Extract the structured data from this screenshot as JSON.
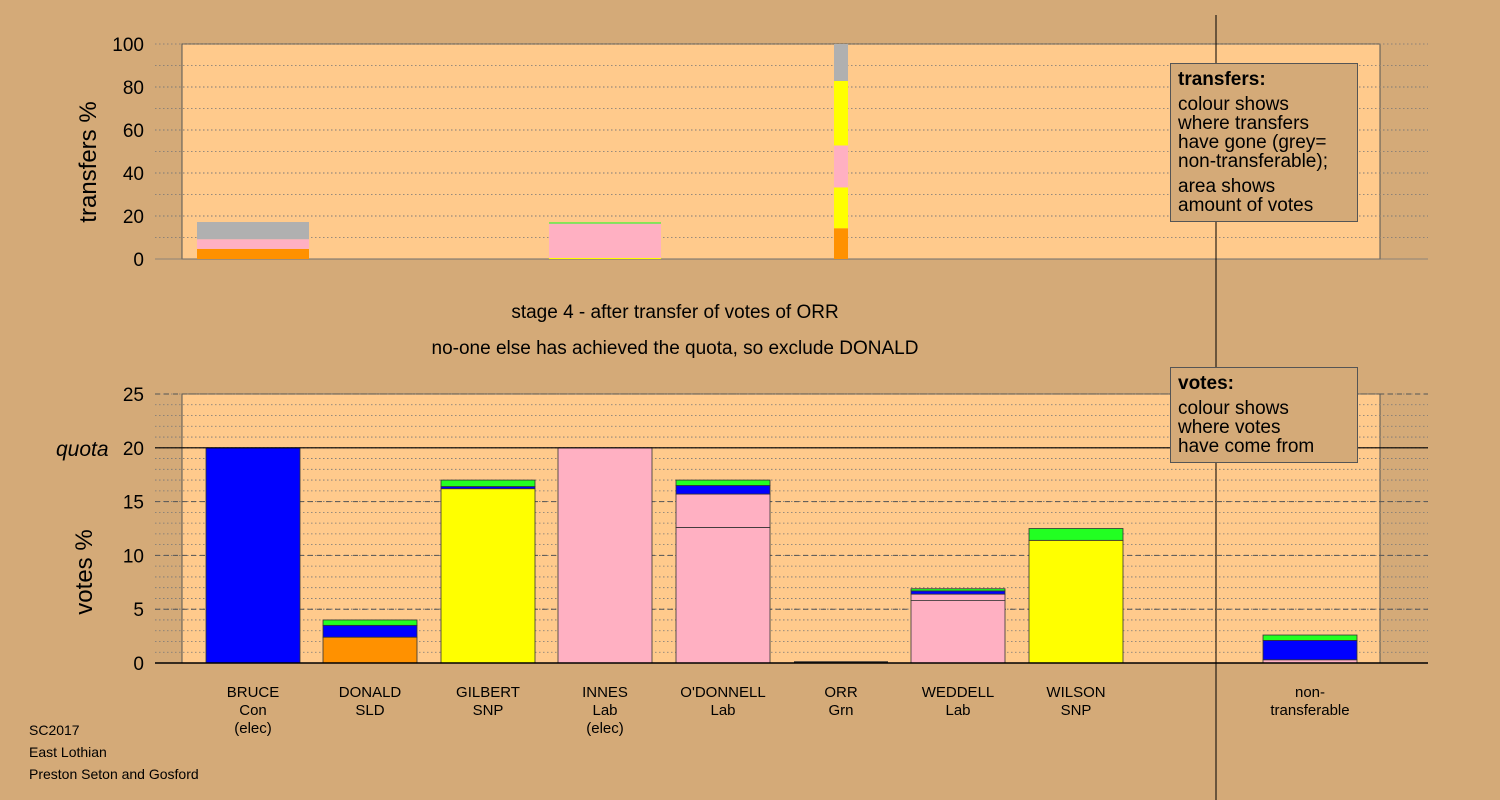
{
  "chart_data": [
    {
      "type": "bar",
      "stacked": true,
      "ylabel": "transfers %",
      "ylim": [
        0,
        100
      ],
      "yticks": [
        0,
        20,
        40,
        60,
        80,
        100
      ],
      "grid": "dotted",
      "categories": [
        "BRUCE",
        "DONALD",
        "GILBERT",
        "INNES",
        "O'DONNELL",
        "ORR",
        "WEDDELL",
        "WILSON",
        "non-transferable"
      ],
      "stacks": [
        {
          "category": "BRUCE",
          "segments": [
            {
              "party": "SLD",
              "value": 4.7
            },
            {
              "party": "Lab",
              "value": 4.5
            },
            {
              "party": "non-transferable",
              "value": 8.0
            }
          ]
        },
        {
          "category": "INNES",
          "segments": [
            {
              "party": "SNP",
              "value": 0.5
            },
            {
              "party": "Lab",
              "value": 16.0
            },
            {
              "party": "Grn",
              "value": 0.5
            }
          ]
        },
        {
          "category": "ORR",
          "segments": [
            {
              "party": "SLD",
              "value": 14.3
            },
            {
              "party": "SNP",
              "value": 19.0
            },
            {
              "party": "Lab",
              "value": 19.5
            },
            {
              "party": "SNP",
              "value": 30.0
            },
            {
              "party": "non-transferable",
              "value": 17.2
            }
          ]
        }
      ]
    },
    {
      "type": "bar",
      "stacked": true,
      "ylabel": "votes %",
      "ylim": [
        0,
        25
      ],
      "yticks": [
        0,
        5,
        10,
        15,
        20,
        25
      ],
      "quota": 20,
      "quota_label": "quota",
      "grid": "dotted",
      "categories": [
        {
          "name": "BRUCE",
          "party": "Con",
          "note": "(elec)"
        },
        {
          "name": "DONALD",
          "party": "SLD",
          "note": ""
        },
        {
          "name": "GILBERT",
          "party": "SNP",
          "note": ""
        },
        {
          "name": "INNES",
          "party": "Lab",
          "note": "(elec)"
        },
        {
          "name": "O'DONNELL",
          "party": "Lab",
          "note": ""
        },
        {
          "name": "ORR",
          "party": "Grn",
          "note": ""
        },
        {
          "name": "WEDDELL",
          "party": "Lab",
          "note": ""
        },
        {
          "name": "WILSON",
          "party": "SNP",
          "note": ""
        },
        {
          "name": "non-",
          "party": "transferable",
          "note": ""
        }
      ],
      "stacks": [
        {
          "category": "BRUCE",
          "segments": [
            {
              "party": "Con",
              "value": 20.0
            }
          ]
        },
        {
          "category": "DONALD",
          "segments": [
            {
              "party": "SLD",
              "value": 2.4
            },
            {
              "party": "Con",
              "value": 1.1
            },
            {
              "party": "Grn",
              "value": 0.5
            }
          ]
        },
        {
          "category": "GILBERT",
          "segments": [
            {
              "party": "SNP",
              "value": 16.2
            },
            {
              "party": "Con",
              "value": 0.2
            },
            {
              "party": "Grn",
              "value": 0.6
            }
          ]
        },
        {
          "category": "INNES",
          "segments": [
            {
              "party": "Lab",
              "value": 20.0
            }
          ]
        },
        {
          "category": "O'DONNELL",
          "segments": [
            {
              "party": "Lab",
              "value": 12.6
            },
            {
              "party": "Lab",
              "value": 3.1
            },
            {
              "party": "Con",
              "value": 0.8
            },
            {
              "party": "Grn",
              "value": 0.5
            }
          ]
        },
        {
          "category": "ORR",
          "segments": [
            {
              "party": "Grn",
              "value": 0.0
            }
          ]
        },
        {
          "category": "WEDDELL",
          "segments": [
            {
              "party": "Lab",
              "value": 5.8
            },
            {
              "party": "Lab",
              "value": 0.6
            },
            {
              "party": "Con",
              "value": 0.3
            },
            {
              "party": "Grn",
              "value": 0.2
            }
          ]
        },
        {
          "category": "WILSON",
          "segments": [
            {
              "party": "SNP",
              "value": 11.4
            },
            {
              "party": "Grn",
              "value": 1.1
            }
          ]
        },
        {
          "category": "non-transferable",
          "segments": [
            {
              "party": "Lab",
              "value": 0.3
            },
            {
              "party": "Con",
              "value": 1.8
            },
            {
              "party": "Grn",
              "value": 0.5
            }
          ]
        }
      ]
    }
  ],
  "party_colors": {
    "Con": "#0000ff",
    "SLD": "#ff9100",
    "SNP": "#ffff00",
    "Lab": "#ffb0c2",
    "Grn": "#22ff22",
    "non-transferable": "#b0b0b0"
  },
  "colors": {
    "background": "#d4aa78",
    "plot_area": "#ffca8c"
  },
  "stage_text": "stage 4 - after transfer of votes of ORR",
  "exclude_text": "no-one else has achieved the quota, so exclude DONALD",
  "legend_transfers": {
    "title": "transfers:",
    "line1": "colour shows",
    "line2": "where transfers",
    "line3": "have gone (grey=",
    "line4": "non-transferable);",
    "line5": "area shows",
    "line6": "amount of votes"
  },
  "legend_votes": {
    "title": "votes:",
    "line1": "colour shows",
    "line2": "where votes",
    "line3": "have come from"
  },
  "footer": {
    "line1": "SC2017",
    "line2": "East Lothian",
    "line3": "Preston Seton and Gosford"
  }
}
